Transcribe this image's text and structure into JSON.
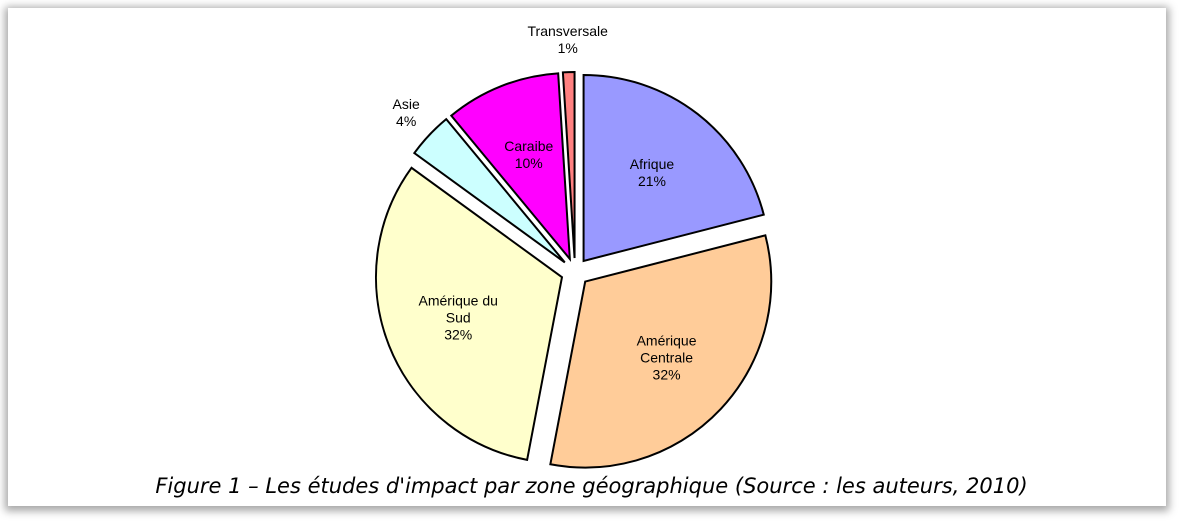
{
  "chart_data": {
    "type": "pie",
    "caption": "Figure 1 – Les études d'impact par zone géographique (Source : les auteurs, 2010)",
    "categories": [
      "Afrique",
      "Amérique Centrale",
      "Amérique du Sud",
      "Asie",
      "Caraibe",
      "Transversale"
    ],
    "values": [
      21,
      32,
      32,
      4,
      10,
      1
    ],
    "value_labels": [
      "21%",
      "32%",
      "32%",
      "4%",
      "10%",
      "1%"
    ],
    "colors": [
      "#9999ff",
      "#ffcc99",
      "#ffffcc",
      "#ccffff",
      "#ff00ff",
      "#ff8080"
    ]
  }
}
